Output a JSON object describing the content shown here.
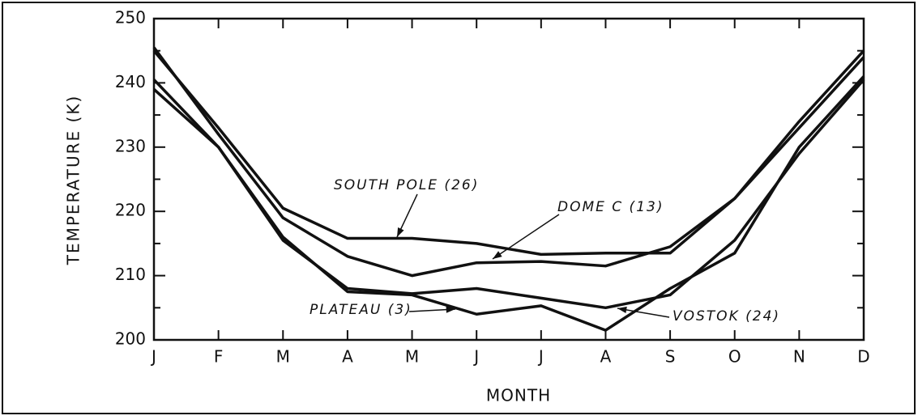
{
  "chart_data": {
    "type": "line",
    "x_label": "MONTH",
    "y_label": "TEMPERATURE (K)",
    "categories": [
      "J",
      "F",
      "M",
      "A",
      "M",
      "J",
      "J",
      "A",
      "S",
      "O",
      "N",
      "D"
    ],
    "series": [
      {
        "name": "SOUTH POLE (26)",
        "color": "#111111",
        "values": [
          245,
          233,
          220.5,
          215.8,
          215.8,
          215,
          213.3,
          213.5,
          213.5,
          222,
          234,
          245
        ]
      },
      {
        "name": "DOME C (13)",
        "color": "#111111",
        "values": [
          245.5,
          232,
          219,
          213,
          210,
          212,
          212.2,
          211.5,
          214.5,
          222,
          233,
          244
        ]
      },
      {
        "name": "PLATEAU (3)",
        "color": "#111111",
        "values": [
          239,
          230,
          216,
          207.5,
          207,
          204,
          205.3,
          201.5,
          208,
          213.5,
          230,
          241
        ]
      },
      {
        "name": "VOSTOK (24)",
        "color": "#111111",
        "values": [
          240.5,
          230,
          215.5,
          208,
          207.2,
          208,
          206.5,
          205,
          207,
          215.5,
          229,
          240.5
        ]
      }
    ],
    "ylim": [
      200,
      250
    ],
    "yticks": [
      200,
      210,
      220,
      230,
      240,
      250
    ],
    "yminor_ticks": [
      205,
      215,
      225,
      235,
      245
    ],
    "grid": false
  }
}
